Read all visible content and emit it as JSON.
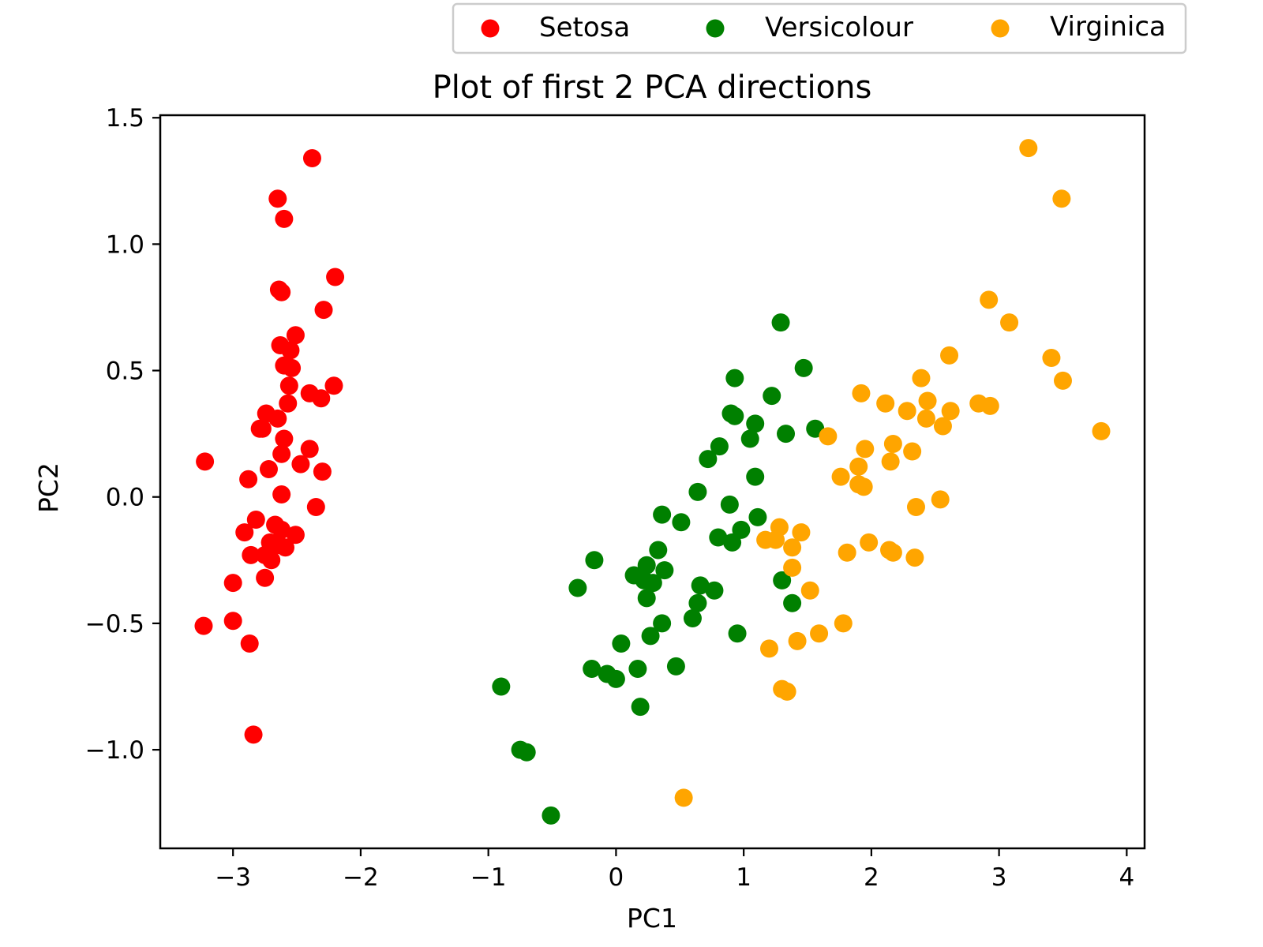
{
  "chart_data": {
    "type": "scatter",
    "title": "Plot of first 2 PCA directions",
    "xlabel": "PC1",
    "ylabel": "PC2",
    "xlim": [
      -3.57,
      4.14
    ],
    "ylim": [
      -1.39,
      1.51
    ],
    "xticks": [
      -3,
      -2,
      -1,
      0,
      1,
      2,
      3,
      4
    ],
    "xtick_labels": [
      "−3",
      "−2",
      "−1",
      "0",
      "1",
      "2",
      "3",
      "4"
    ],
    "yticks": [
      -1.0,
      -0.5,
      0.0,
      0.5,
      1.0,
      1.5
    ],
    "ytick_labels": [
      "−1.0",
      "−0.5",
      "0.0",
      "0.5",
      "1.0",
      "1.5"
    ],
    "grid": false,
    "legend": {
      "position": "top-center",
      "columns": 3
    },
    "series": [
      {
        "name": "Setosa",
        "color": "#ff0000",
        "points": [
          [
            -2.38,
            1.34
          ],
          [
            -2.65,
            1.18
          ],
          [
            -2.6,
            1.1
          ],
          [
            -2.2,
            0.87
          ],
          [
            -2.64,
            0.82
          ],
          [
            -2.62,
            0.81
          ],
          [
            -2.29,
            0.74
          ],
          [
            -2.51,
            0.64
          ],
          [
            -2.63,
            0.6
          ],
          [
            -2.55,
            0.58
          ],
          [
            -2.6,
            0.52
          ],
          [
            -2.54,
            0.51
          ],
          [
            -2.56,
            0.44
          ],
          [
            -2.21,
            0.44
          ],
          [
            -2.4,
            0.41
          ],
          [
            -2.31,
            0.39
          ],
          [
            -2.57,
            0.37
          ],
          [
            -2.74,
            0.33
          ],
          [
            -2.65,
            0.31
          ],
          [
            -2.77,
            0.27
          ],
          [
            -2.79,
            0.27
          ],
          [
            -2.6,
            0.23
          ],
          [
            -2.4,
            0.19
          ],
          [
            -2.62,
            0.17
          ],
          [
            -2.47,
            0.13
          ],
          [
            -3.22,
            0.14
          ],
          [
            -2.3,
            0.1
          ],
          [
            -2.72,
            0.11
          ],
          [
            -2.88,
            0.07
          ],
          [
            -2.62,
            0.01
          ],
          [
            -2.35,
            -0.04
          ],
          [
            -2.82,
            -0.09
          ],
          [
            -2.67,
            -0.11
          ],
          [
            -2.62,
            -0.13
          ],
          [
            -2.91,
            -0.14
          ],
          [
            -2.51,
            -0.15
          ],
          [
            -2.71,
            -0.18
          ],
          [
            -2.64,
            -0.19
          ],
          [
            -2.59,
            -0.2
          ],
          [
            -2.86,
            -0.23
          ],
          [
            -2.75,
            -0.23
          ],
          [
            -2.7,
            -0.25
          ],
          [
            -2.75,
            -0.32
          ],
          [
            -3.0,
            -0.34
          ],
          [
            -3.0,
            -0.49
          ],
          [
            -3.23,
            -0.51
          ],
          [
            -2.87,
            -0.58
          ],
          [
            -2.84,
            -0.94
          ]
        ]
      },
      {
        "name": "Versicolour",
        "color": "#008000",
        "points": [
          [
            1.29,
            0.69
          ],
          [
            1.47,
            0.51
          ],
          [
            0.93,
            0.47
          ],
          [
            1.22,
            0.4
          ],
          [
            0.9,
            0.33
          ],
          [
            0.93,
            0.32
          ],
          [
            1.09,
            0.29
          ],
          [
            1.56,
            0.27
          ],
          [
            1.33,
            0.25
          ],
          [
            1.05,
            0.23
          ],
          [
            0.81,
            0.2
          ],
          [
            0.72,
            0.15
          ],
          [
            1.09,
            0.08
          ],
          [
            0.64,
            0.02
          ],
          [
            0.89,
            -0.03
          ],
          [
            0.36,
            -0.07
          ],
          [
            1.11,
            -0.08
          ],
          [
            0.51,
            -0.1
          ],
          [
            0.98,
            -0.13
          ],
          [
            0.8,
            -0.16
          ],
          [
            0.91,
            -0.18
          ],
          [
            0.33,
            -0.21
          ],
          [
            -0.17,
            -0.25
          ],
          [
            0.24,
            -0.27
          ],
          [
            0.38,
            -0.29
          ],
          [
            0.14,
            -0.31
          ],
          [
            0.22,
            -0.33
          ],
          [
            0.29,
            -0.34
          ],
          [
            1.3,
            -0.33
          ],
          [
            0.66,
            -0.35
          ],
          [
            -0.3,
            -0.36
          ],
          [
            0.77,
            -0.37
          ],
          [
            0.24,
            -0.4
          ],
          [
            1.38,
            -0.42
          ],
          [
            0.64,
            -0.42
          ],
          [
            0.6,
            -0.48
          ],
          [
            0.36,
            -0.5
          ],
          [
            0.27,
            -0.55
          ],
          [
            0.95,
            -0.54
          ],
          [
            0.04,
            -0.58
          ],
          [
            0.47,
            -0.67
          ],
          [
            -0.19,
            -0.68
          ],
          [
            0.17,
            -0.68
          ],
          [
            -0.07,
            -0.7
          ],
          [
            0.0,
            -0.72
          ],
          [
            0.19,
            -0.83
          ],
          [
            -0.9,
            -0.75
          ],
          [
            -0.75,
            -1.0
          ],
          [
            -0.7,
            -1.01
          ],
          [
            -0.51,
            -1.26
          ]
        ]
      },
      {
        "name": "Virginica",
        "color": "#ffa500",
        "points": [
          [
            3.23,
            1.38
          ],
          [
            3.49,
            1.18
          ],
          [
            2.92,
            0.78
          ],
          [
            3.08,
            0.69
          ],
          [
            2.61,
            0.56
          ],
          [
            3.41,
            0.55
          ],
          [
            3.5,
            0.46
          ],
          [
            2.39,
            0.47
          ],
          [
            1.92,
            0.41
          ],
          [
            2.84,
            0.37
          ],
          [
            2.93,
            0.36
          ],
          [
            2.44,
            0.38
          ],
          [
            2.11,
            0.37
          ],
          [
            2.28,
            0.34
          ],
          [
            2.62,
            0.34
          ],
          [
            2.43,
            0.31
          ],
          [
            2.56,
            0.28
          ],
          [
            3.8,
            0.26
          ],
          [
            1.66,
            0.24
          ],
          [
            2.17,
            0.21
          ],
          [
            1.95,
            0.19
          ],
          [
            2.32,
            0.18
          ],
          [
            2.15,
            0.14
          ],
          [
            1.9,
            0.12
          ],
          [
            1.76,
            0.08
          ],
          [
            1.9,
            0.05
          ],
          [
            1.94,
            0.04
          ],
          [
            2.54,
            -0.01
          ],
          [
            2.35,
            -0.04
          ],
          [
            1.28,
            -0.12
          ],
          [
            1.45,
            -0.14
          ],
          [
            1.17,
            -0.17
          ],
          [
            1.25,
            -0.17
          ],
          [
            1.98,
            -0.18
          ],
          [
            1.38,
            -0.2
          ],
          [
            2.14,
            -0.21
          ],
          [
            2.17,
            -0.22
          ],
          [
            1.81,
            -0.22
          ],
          [
            2.34,
            -0.24
          ],
          [
            1.38,
            -0.28
          ],
          [
            1.52,
            -0.37
          ],
          [
            1.78,
            -0.5
          ],
          [
            1.59,
            -0.54
          ],
          [
            1.42,
            -0.57
          ],
          [
            1.2,
            -0.6
          ],
          [
            1.3,
            -0.76
          ],
          [
            1.34,
            -0.77
          ],
          [
            0.53,
            -1.19
          ]
        ]
      }
    ]
  }
}
